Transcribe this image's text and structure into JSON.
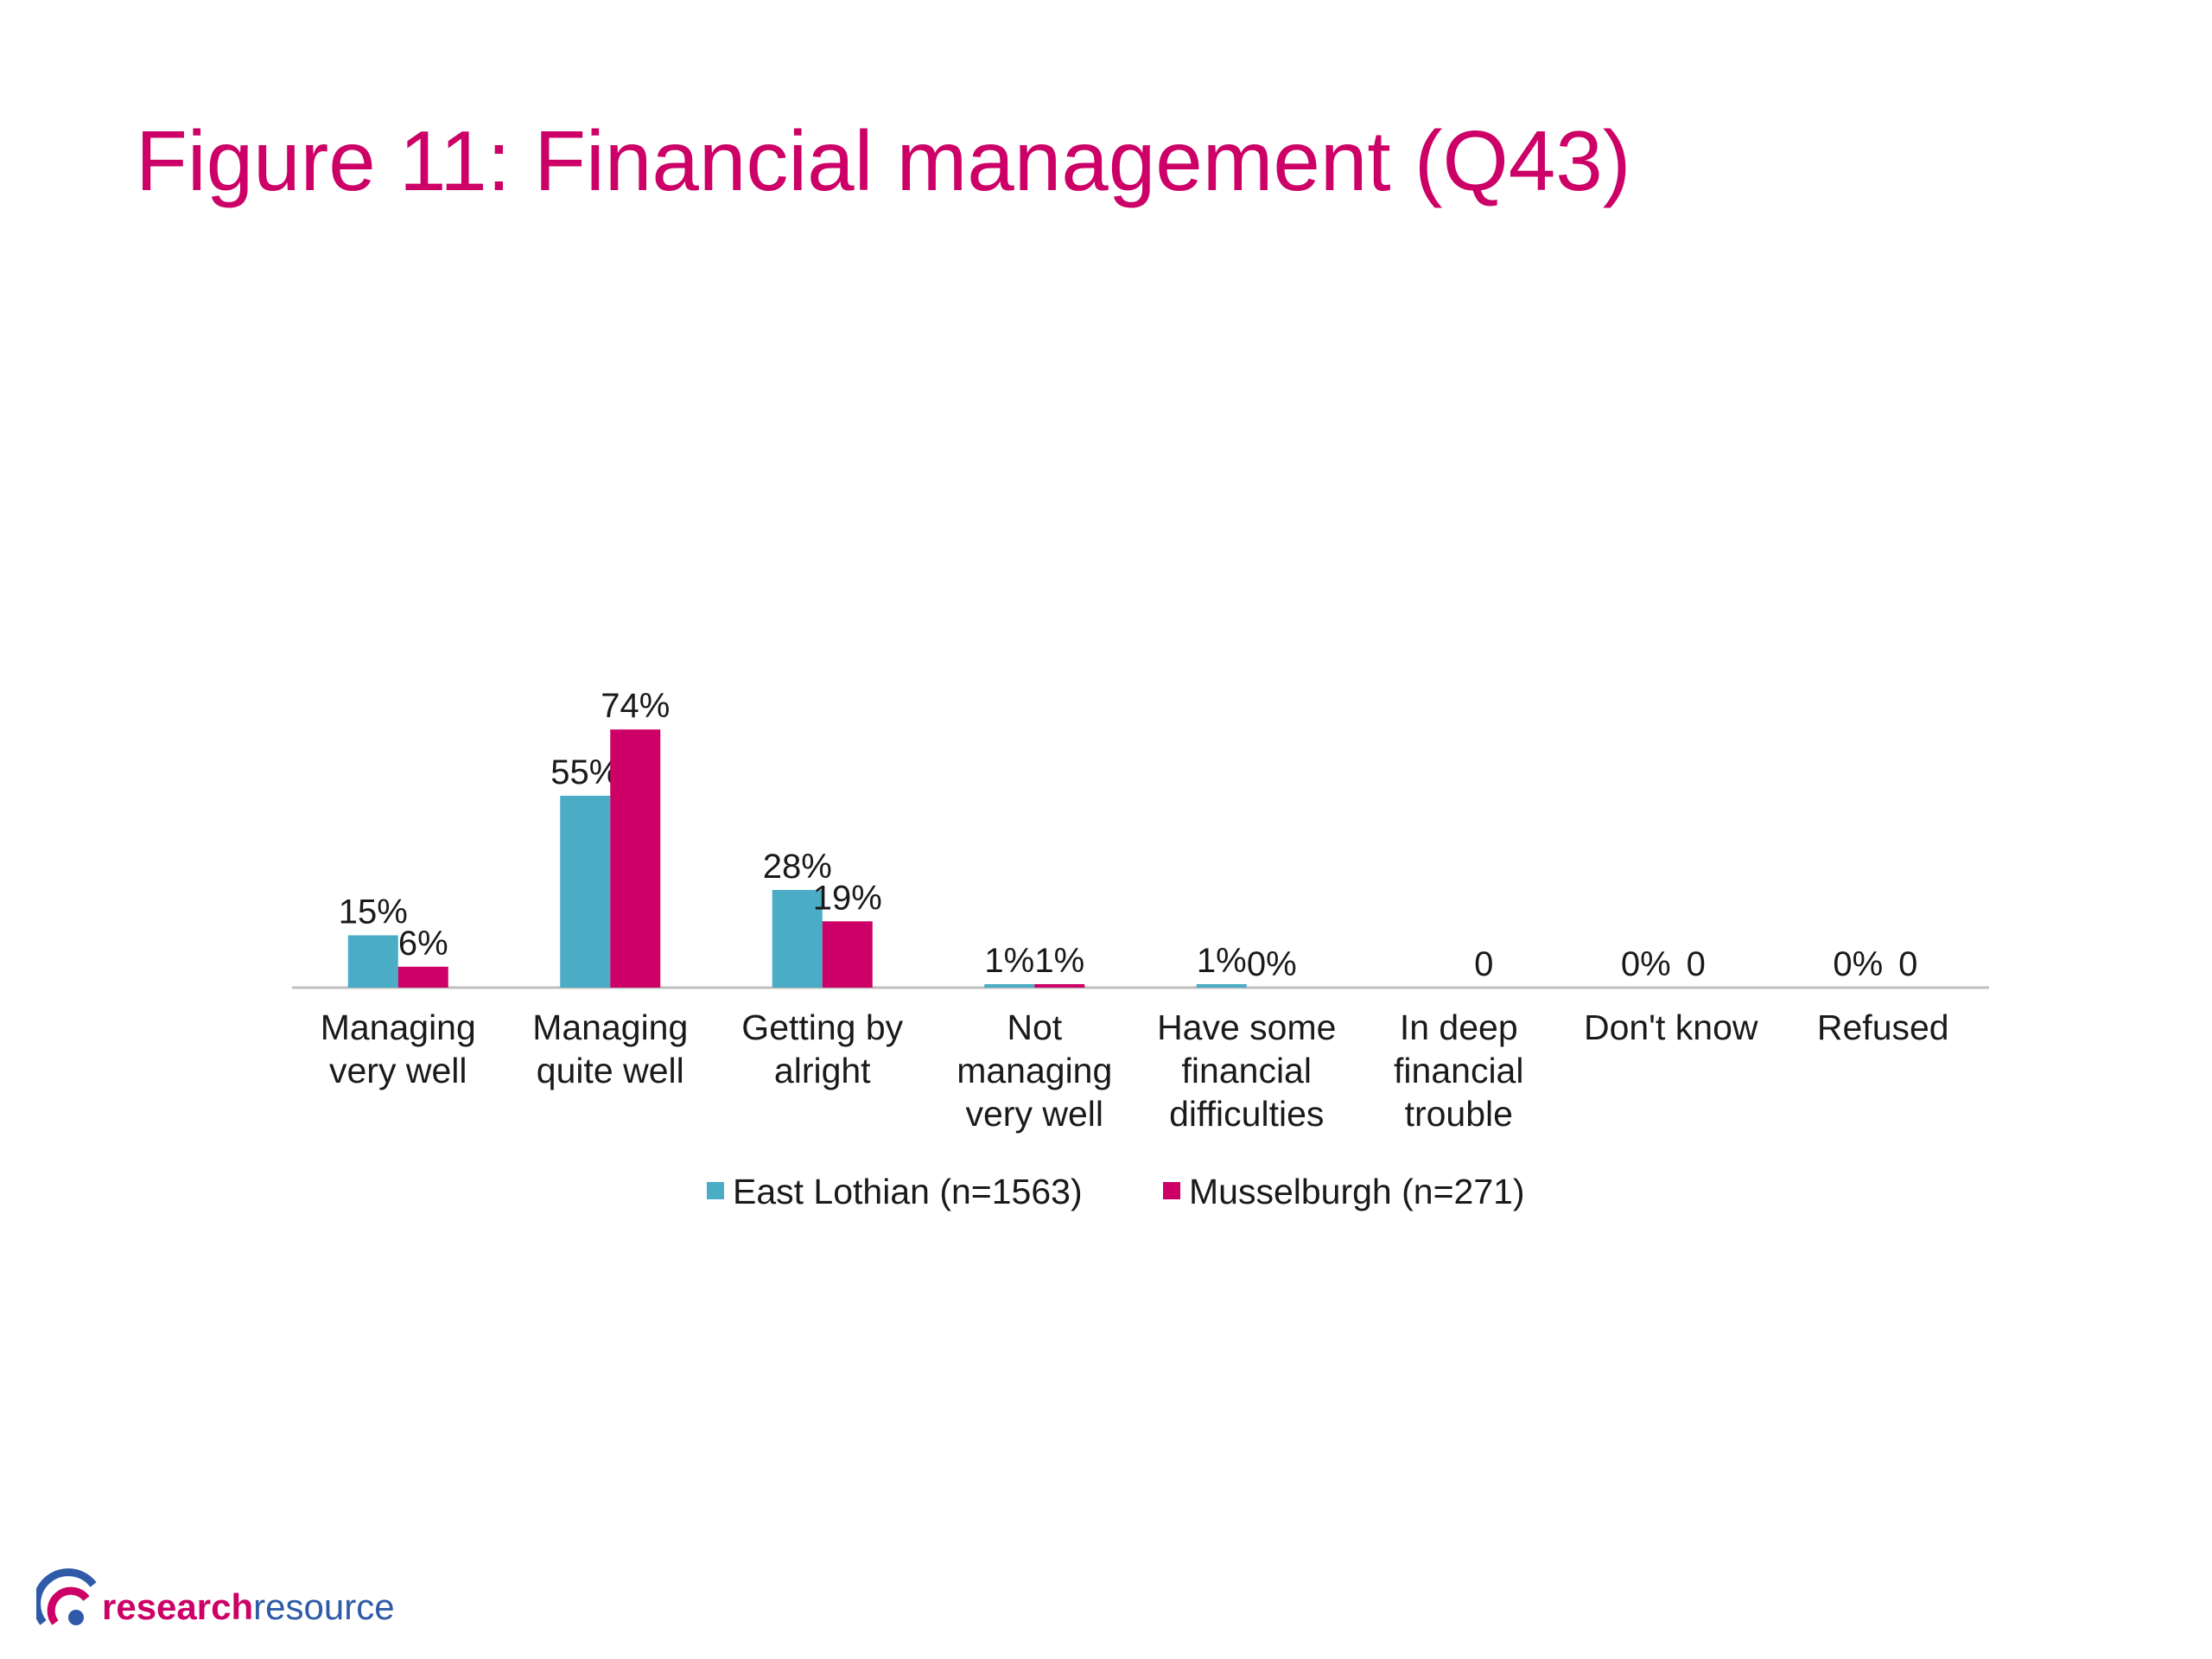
{
  "title": "Figure 11: Financial management (Q43)",
  "colors": {
    "title": "#cc0066",
    "series1": "#4bacc6",
    "series2": "#cc0066",
    "axis": "#bfbfbf"
  },
  "chart_data": {
    "type": "bar",
    "title": "Figure 11: Financial management (Q43)",
    "categories": [
      [
        "Managing",
        "very well"
      ],
      [
        "Managing",
        "quite well"
      ],
      [
        "Getting by",
        "alright"
      ],
      [
        "Not",
        "managing",
        "very well"
      ],
      [
        "Have some",
        "financial",
        "difficulties"
      ],
      [
        "In deep",
        "financial",
        "trouble"
      ],
      [
        "Don't know"
      ],
      [
        "Refused"
      ]
    ],
    "series": [
      {
        "name": "East Lothian (n=1563)",
        "values": [
          15,
          55,
          28,
          1,
          1,
          0,
          0,
          0
        ],
        "labels": [
          "15%",
          "55%",
          "28%",
          "1%",
          "1%",
          "",
          "0%",
          "0%"
        ],
        "color": "#4bacc6"
      },
      {
        "name": "Musselburgh (n=271)",
        "values": [
          6,
          74,
          19,
          1,
          0,
          0,
          0,
          0
        ],
        "labels": [
          "6%",
          "74%",
          "19%",
          "1%",
          "0%",
          "0",
          "0",
          "0"
        ],
        "color": "#cc0066"
      }
    ],
    "legend_position": "bottom",
    "ylim": [
      0,
      80
    ],
    "grid": false
  },
  "logo": {
    "part1": "research",
    "part2": "resource"
  }
}
